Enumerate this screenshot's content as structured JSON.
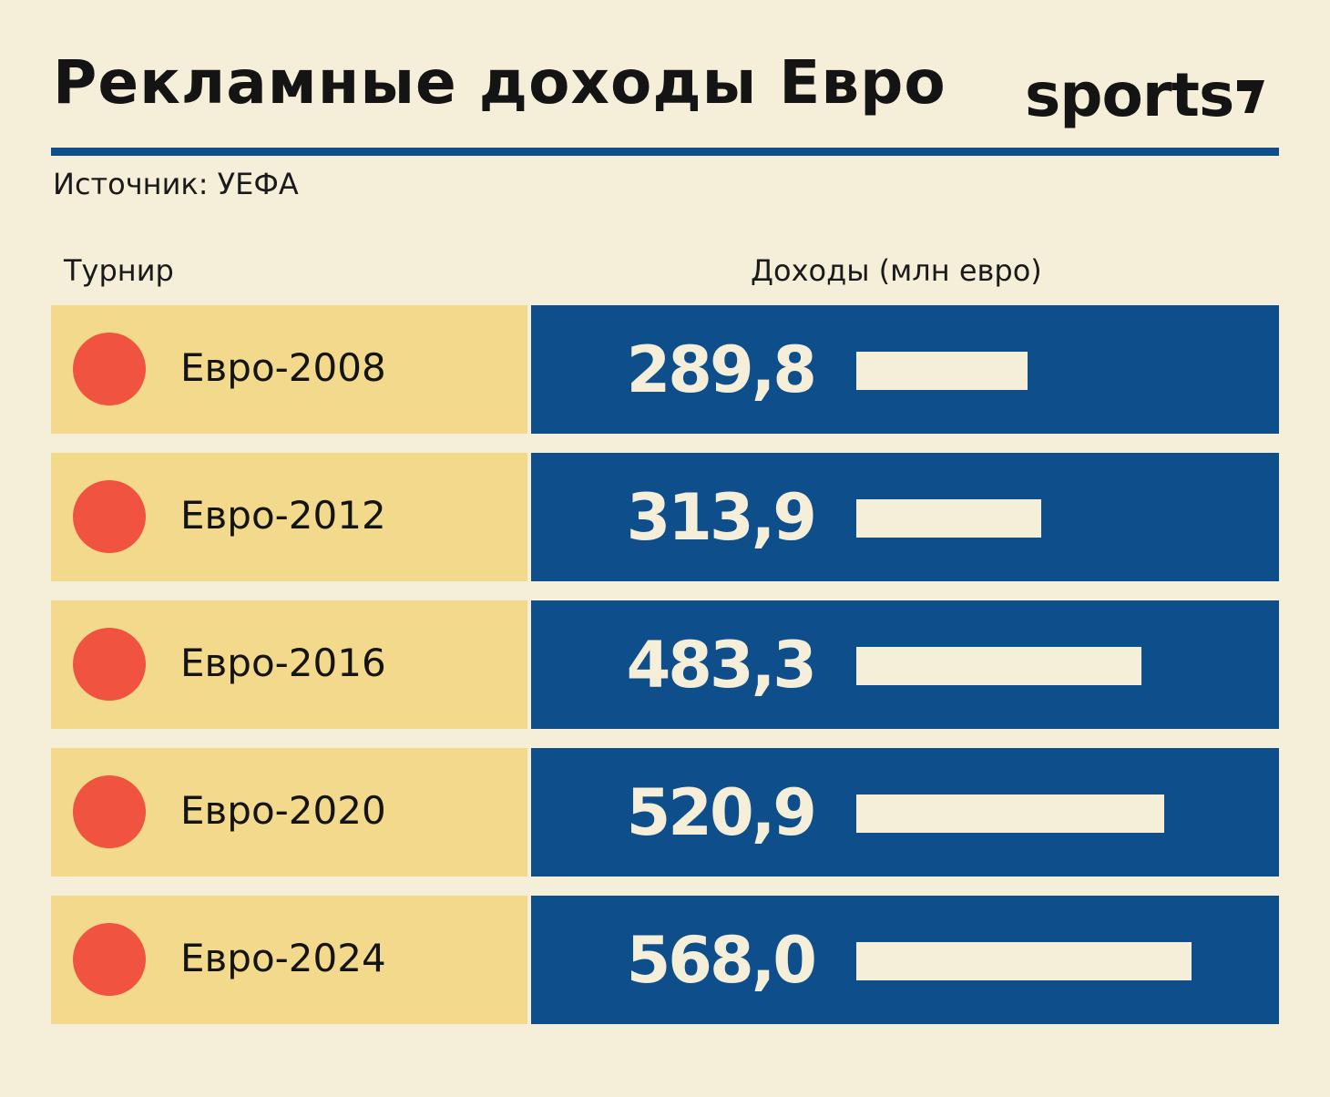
{
  "header": {
    "title": "Рекламные доходы Евро",
    "logo": "sports",
    "source": "Источник: УЕФА"
  },
  "colors": {
    "background": "#f5efd9",
    "accent_blue": "#0e4f8b",
    "row_yellow": "#f2d98b",
    "dot_red": "#f05440"
  },
  "chart_data": {
    "type": "bar",
    "orientation": "horizontal",
    "title": "Рекламные доходы Евро",
    "xlabel": "Турнир",
    "ylabel": "Доходы (млн евро)",
    "categories": [
      "Евро-2008",
      "Евро-2012",
      "Евро-2016",
      "Евро-2020",
      "Евро-2024"
    ],
    "labels": [
      "289,8",
      "313,9",
      "483,3",
      "520,9",
      "568,0"
    ],
    "values": [
      289.8,
      313.9,
      483.3,
      520.9,
      568.0
    ],
    "xlim": [
      0,
      1000
    ]
  }
}
